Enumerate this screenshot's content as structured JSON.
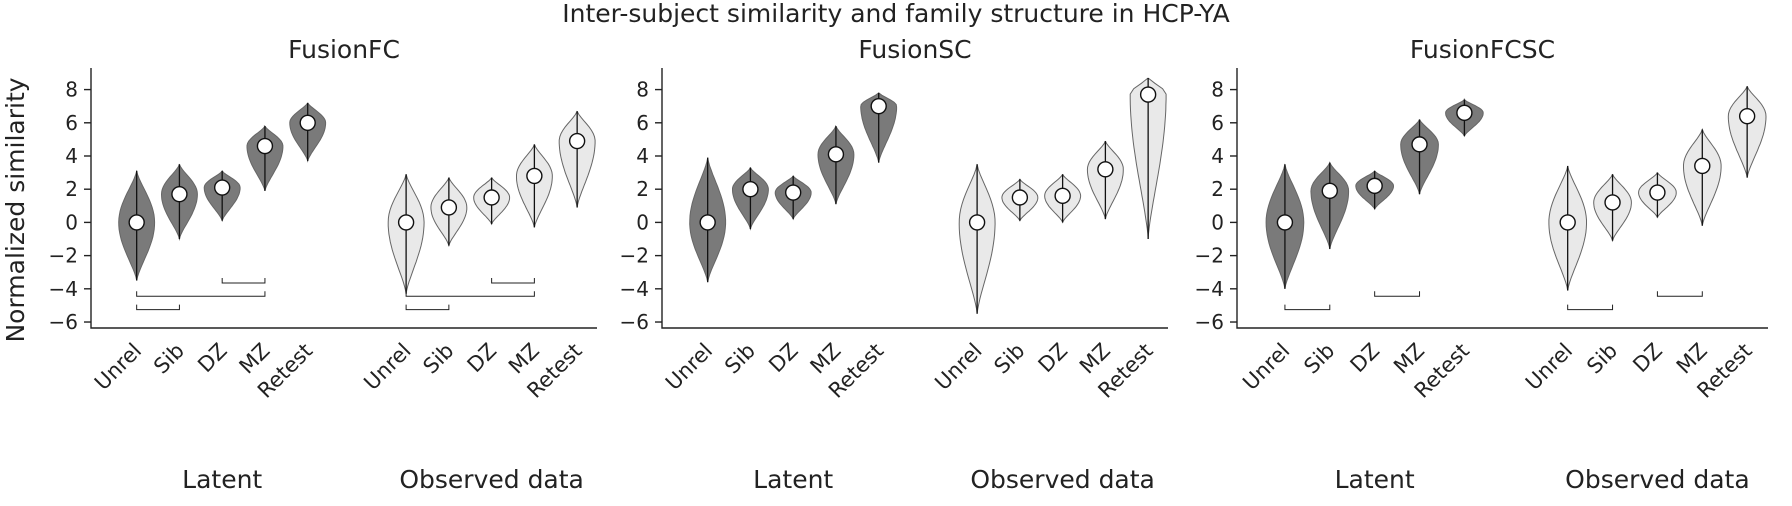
{
  "figure_title": "Inter-subject similarity and family structure in HCP-YA",
  "colors": {
    "latent": "#7a7a7a",
    "observed": "#e9e9e9",
    "edge": "#666666",
    "median": "#ffffff"
  },
  "chart_data": [
    {
      "type": "violin",
      "title": "FusionFC",
      "ylabel": "Normalized similarity",
      "ylim": [
        -6.3,
        9.3
      ],
      "yticks": [
        -6,
        -4,
        -2,
        0,
        2,
        4,
        6,
        8
      ],
      "categories": [
        "Unrel",
        "Sib",
        "DZ",
        "MZ",
        "Retest"
      ],
      "groups": [
        "Latent",
        "Observed data"
      ],
      "series": [
        {
          "name": "Latent",
          "fill": "latent",
          "medians": [
            0.0,
            1.7,
            2.1,
            4.6,
            6.0
          ],
          "mins": [
            -3.5,
            -1.0,
            0.1,
            1.9,
            3.7
          ],
          "maxs": [
            3.1,
            3.5,
            3.1,
            5.8,
            7.2
          ]
        },
        {
          "name": "Observed data",
          "fill": "observed",
          "medians": [
            0.0,
            0.9,
            1.5,
            2.8,
            4.9
          ],
          "mins": [
            -4.3,
            -1.4,
            -0.1,
            -0.3,
            0.9
          ],
          "maxs": [
            2.9,
            2.7,
            2.7,
            4.7,
            6.7
          ]
        }
      ],
      "brackets": [
        {
          "a": "Latent DZ",
          "b": "Latent MZ",
          "y": -3.65
        },
        {
          "a": "Observed DZ",
          "b": "Observed MZ",
          "y": -3.65
        },
        {
          "a": "Latent Unrel",
          "b": "Latent MZ",
          "y": -4.45
        },
        {
          "a": "Observed Unrel",
          "b": "Observed MZ",
          "y": -4.45
        },
        {
          "a": "Latent Unrel",
          "b": "Latent Sib",
          "y": -5.25
        },
        {
          "a": "Observed Unrel",
          "b": "Observed Sib",
          "y": -5.25
        }
      ]
    },
    {
      "type": "violin",
      "title": "FusionSC",
      "ylabel": "",
      "ylim": [
        -6.3,
        9.3
      ],
      "yticks": [
        -6,
        -4,
        -2,
        0,
        2,
        4,
        6,
        8
      ],
      "categories": [
        "Unrel",
        "Sib",
        "DZ",
        "MZ",
        "Retest"
      ],
      "groups": [
        "Latent",
        "Observed data"
      ],
      "series": [
        {
          "name": "Latent",
          "fill": "latent",
          "medians": [
            0.0,
            2.0,
            1.8,
            4.1,
            7.0
          ],
          "mins": [
            -3.6,
            -0.4,
            0.2,
            1.1,
            3.6
          ],
          "maxs": [
            3.9,
            3.3,
            2.8,
            5.8,
            7.8
          ]
        },
        {
          "name": "Observed data",
          "fill": "observed",
          "medians": [
            0.0,
            1.5,
            1.6,
            3.2,
            7.7
          ],
          "mins": [
            -5.5,
            0.1,
            0.0,
            0.2,
            -1.0
          ],
          "maxs": [
            3.5,
            2.6,
            2.9,
            4.9,
            8.7
          ]
        }
      ],
      "brackets": []
    },
    {
      "type": "violin",
      "title": "FusionFCSC",
      "ylabel": "",
      "ylim": [
        -6.3,
        9.3
      ],
      "yticks": [
        -6,
        -4,
        -2,
        0,
        2,
        4,
        6,
        8
      ],
      "categories": [
        "Unrel",
        "Sib",
        "DZ",
        "MZ",
        "Retest"
      ],
      "groups": [
        "Latent",
        "Observed data"
      ],
      "series": [
        {
          "name": "Latent",
          "fill": "latent",
          "medians": [
            0.0,
            1.9,
            2.2,
            4.7,
            6.6
          ],
          "mins": [
            -4.0,
            -1.6,
            0.8,
            1.7,
            5.2
          ],
          "maxs": [
            3.5,
            3.6,
            3.1,
            6.2,
            7.4
          ]
        },
        {
          "name": "Observed data",
          "fill": "observed",
          "medians": [
            0.0,
            1.2,
            1.8,
            3.4,
            6.4
          ],
          "mins": [
            -4.1,
            -1.1,
            0.3,
            -0.2,
            2.7
          ],
          "maxs": [
            3.4,
            2.9,
            3.0,
            5.6,
            8.2
          ]
        }
      ],
      "brackets": [
        {
          "a": "Latent DZ",
          "b": "Latent MZ",
          "y": -4.45
        },
        {
          "a": "Observed DZ",
          "b": "Observed MZ",
          "y": -4.45
        },
        {
          "a": "Latent Unrel",
          "b": "Latent Sib",
          "y": -5.25
        },
        {
          "a": "Observed Unrel",
          "b": "Observed Sib",
          "y": -5.25
        }
      ]
    }
  ]
}
